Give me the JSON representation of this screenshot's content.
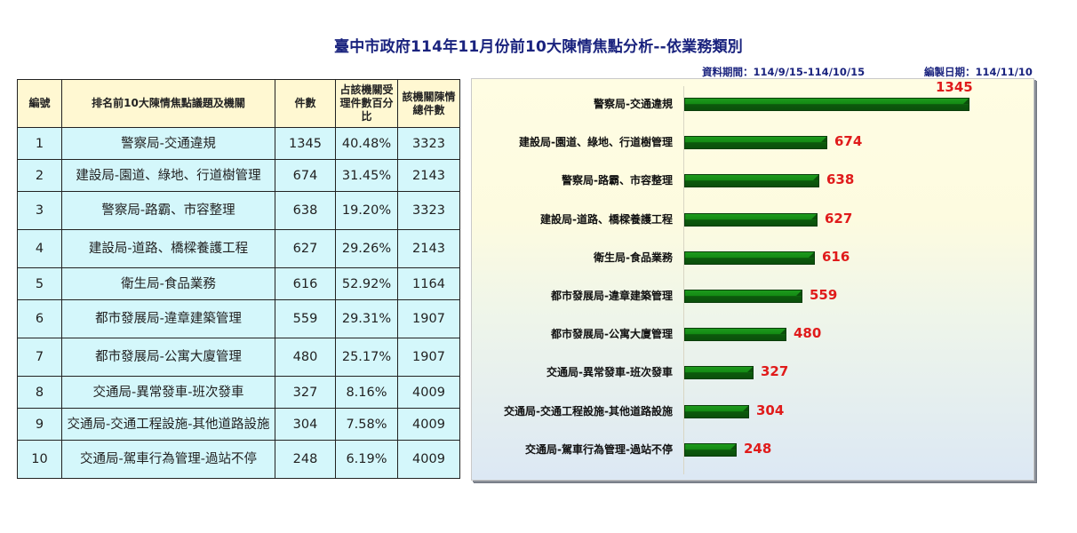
{
  "header": {
    "title": "臺中市政府114年11月份前10大陳情焦點分析--依業務類別",
    "data_period": "資料期間：114/9/15-114/10/15",
    "compiled_date": "編製日期：114/11/10"
  },
  "table": {
    "columns": [
      "編號",
      "排名前10大陳情焦點議題及機關",
      "件數",
      "占該機關受理件數百分比",
      "該機關陳情總件數"
    ],
    "rows": [
      {
        "no": "1",
        "topic": "警察局-交通違規",
        "count": "1345",
        "pct": "40.48%",
        "total": "3323"
      },
      {
        "no": "2",
        "topic": "建設局-園道、綠地、行道樹管理",
        "count": "674",
        "pct": "31.45%",
        "total": "2143"
      },
      {
        "no": "3",
        "topic": "警察局-路霸、市容整理",
        "count": "638",
        "pct": "19.20%",
        "total": "3323"
      },
      {
        "no": "4",
        "topic": "建設局-道路、橋樑養護工程",
        "count": "627",
        "pct": "29.26%",
        "total": "2143"
      },
      {
        "no": "5",
        "topic": "衛生局-食品業務",
        "count": "616",
        "pct": "52.92%",
        "total": "1164"
      },
      {
        "no": "6",
        "topic": "都市發展局-違章建築管理",
        "count": "559",
        "pct": "29.31%",
        "total": "1907"
      },
      {
        "no": "7",
        "topic": "都市發展局-公寓大廈管理",
        "count": "480",
        "pct": "25.17%",
        "total": "1907"
      },
      {
        "no": "8",
        "topic": "交通局-異常發車-班次發車",
        "count": "327",
        "pct": "8.16%",
        "total": "4009"
      },
      {
        "no": "9",
        "topic": "交通局-交通工程設施-其他道路設施",
        "count": "304",
        "pct": "7.58%",
        "total": "4009"
      },
      {
        "no": "10",
        "topic": "交通局-駕車行為管理-過站不停",
        "count": "248",
        "pct": "6.19%",
        "total": "4009"
      }
    ]
  },
  "chart_data": {
    "type": "bar",
    "orientation": "horizontal",
    "title": "臺中市政府114年11月份前10大陳情焦點分析--依業務類別",
    "xlabel": "",
    "ylabel": "",
    "categories": [
      "警察局-交通違規",
      "建設局-園道、綠地、行道樹管理",
      "警察局-路霸、市容整理",
      "建設局-道路、橋樑養護工程",
      "衛生局-食品業務",
      "都市發展局-違章建築管理",
      "都市發展局-公寓大廈管理",
      "交通局-異常發車-班次發車",
      "交通局-交通工程設施-其他道路設施",
      "交通局-駕車行為管理-過站不停"
    ],
    "values": [
      1345,
      674,
      638,
      627,
      616,
      559,
      480,
      327,
      304,
      248
    ],
    "value_labels": [
      "1345",
      "674",
      "638",
      "627",
      "616",
      "559",
      "480",
      "327",
      "304",
      "248"
    ],
    "xlim": [
      0,
      1600
    ],
    "grid": false,
    "legend": "none",
    "colors": {
      "bar": "#138a13",
      "bar_dark": "#0b4f0b",
      "value_label": "#e01b1b"
    }
  }
}
